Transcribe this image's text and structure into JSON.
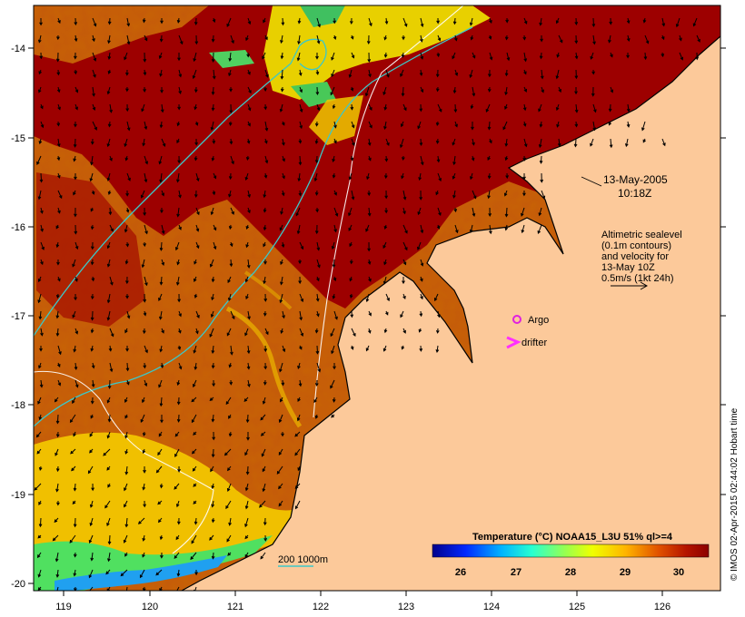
{
  "map": {
    "date_label": "13-May-2005",
    "time_label": "10:18Z",
    "alt_note_lines": [
      "Altimetric sealevel",
      "(0.1m contours)",
      "and velocity for",
      "13-May 10Z",
      "0.5m/s (1kt 24h)"
    ],
    "argo_label": "Argo",
    "drifter_label": "drifter",
    "depth_label": "200  1000m",
    "colorbar_title": "Temperature (°C) NOAA15_L3U 51% ql>=4",
    "colorbar_ticks": [
      "26",
      "27",
      "28",
      "29",
      "30"
    ],
    "credit": "© IMOS 02-Apr-2015 02:44:02 Hobart time",
    "x_ticks": [
      "119",
      "120",
      "121",
      "122",
      "123",
      "124",
      "125",
      "126"
    ],
    "y_ticks": [
      "-14",
      "-15",
      "-16",
      "-17",
      "-18",
      "-19",
      "-20"
    ],
    "colors": {
      "land": "#fcc99a",
      "hot": "#9d0000",
      "warm": "#c84a00",
      "cyan_contour": "#3cc8c8",
      "argo": "#e020e0",
      "drifter": "#ff30ff"
    }
  }
}
